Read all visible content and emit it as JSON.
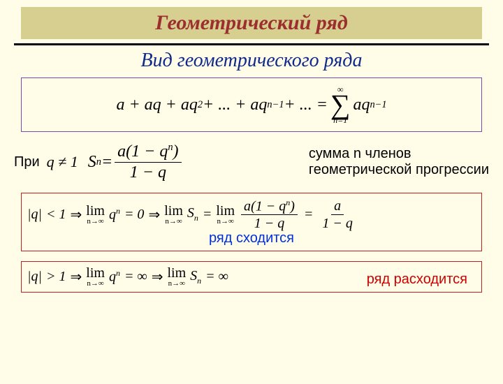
{
  "title": "Геометрический ряд",
  "subtitle": "Вид геометрического ряда",
  "mainEquation": {
    "lhs_terms": "a + aq + aq",
    "sq_exp": "2",
    "mid": " + ... + aq",
    "nminus1": "n−1",
    "tail": " + ... = ",
    "sum_top": "∞",
    "sum_bottom": "n=1",
    "sum_body": "aq",
    "sum_body_exp": "n−1"
  },
  "middleRow": {
    "pri": "При",
    "qne": "q ≠ 1",
    "Sn_label": "S",
    "Sn_sub": "n",
    "eq": " = ",
    "frac_num_a": "a(1 − q",
    "frac_num_exp": "n",
    "frac_num_close": ")",
    "frac_den": "1 − q",
    "desc_line1": "сумма n членов",
    "desc_line2": "геометрической прогрессии"
  },
  "case1": {
    "abs_q": "|q|",
    "lt": " < 1 ",
    "impl": "⇒",
    "limqn_eq_0": " = 0 ",
    "qn_base": "q",
    "qn_exp": "n",
    "Sn_part": "S",
    "Sn_sub": "n",
    "eq": " = ",
    "frac2_num_a": "a(1 − q",
    "frac2_num_exp": "n",
    "frac2_num_close": ")",
    "frac2_den": "1 − q",
    "final_num": "a",
    "final_den": "1 − q",
    "note": "ряд сходится"
  },
  "case2": {
    "abs_q": "|q|",
    "gt": " > 1 ",
    "impl": "⇒",
    "qn_base": "q",
    "qn_exp": "n",
    "eq_inf": " = ∞ ",
    "Sn_part": "S",
    "Sn_sub": "n",
    "eq_inf2": " = ∞",
    "note": "ряд расходится"
  },
  "lim": {
    "word": "lim",
    "sub": "n→∞"
  },
  "colors": {
    "background": "#fffde8",
    "banner_bg": "#d7cf8f",
    "banner_text": "#9b2e2e",
    "subtitle": "#102a8a",
    "box_purple": "#7a4aa8",
    "box_red": "#c02020",
    "note_blue": "#0030dd",
    "note_red": "#cc0000"
  }
}
